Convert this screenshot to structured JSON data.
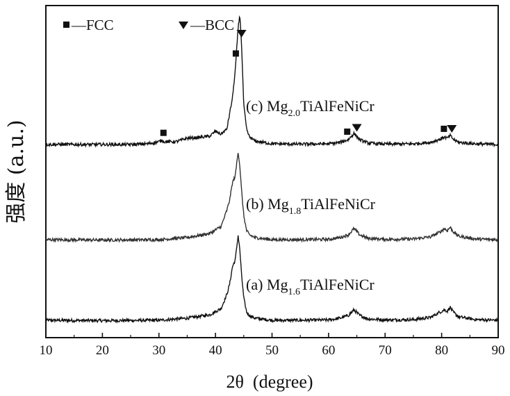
{
  "chart_data": {
    "type": "line",
    "title": "",
    "xlabel": "2θ  (degree)",
    "ylabel": "强度 (a.u.)",
    "xlim": [
      10,
      90
    ],
    "xticks": [
      10,
      20,
      30,
      40,
      50,
      60,
      70,
      80,
      90
    ],
    "grid": false,
    "legend": [
      {
        "marker": "square",
        "label": "—FCC"
      },
      {
        "marker": "triangle-down",
        "label": "—BCC"
      }
    ],
    "series": [
      {
        "id": "a",
        "label_prefix": "(a) Mg",
        "label_sub": "1.6",
        "label_suffix": "TiAlFeNiCr",
        "color": "#111111",
        "offset": 0,
        "x": [
          10,
          20,
          30,
          35,
          39,
          41,
          42,
          42.5,
          43,
          43.5,
          44,
          44.3,
          44.6,
          45,
          45.5,
          46,
          47,
          50,
          55,
          60,
          62,
          63.5,
          64.5,
          65.5,
          67,
          70,
          75,
          78,
          79.5,
          80.5,
          81,
          81.5,
          82,
          83,
          86,
          90
        ],
        "y": [
          0.3,
          0.25,
          0.3,
          0.6,
          1.1,
          2.0,
          4.0,
          5.5,
          8.0,
          9.0,
          12.5,
          10.5,
          7.0,
          3.5,
          1.5,
          1.0,
          0.6,
          0.3,
          0.3,
          0.35,
          0.6,
          1.0,
          1.8,
          1.0,
          0.5,
          0.35,
          0.4,
          0.7,
          1.4,
          1.8,
          1.6,
          2.2,
          1.5,
          0.8,
          0.4,
          0.3
        ]
      },
      {
        "id": "b",
        "label_prefix": "(b) Mg",
        "label_sub": "1.8",
        "label_suffix": "TiAlFeNiCr",
        "color": "#333333",
        "offset": 12,
        "x": [
          10,
          20,
          30,
          35,
          39,
          41,
          42,
          42.5,
          43,
          43.5,
          44,
          44.3,
          44.6,
          45,
          45.5,
          46,
          47,
          50,
          55,
          60,
          62,
          63.5,
          64.5,
          65.5,
          67,
          70,
          75,
          78,
          79.5,
          80.5,
          81,
          81.5,
          82,
          83,
          86,
          90
        ],
        "y": [
          0.3,
          0.25,
          0.3,
          0.6,
          1.2,
          2.2,
          4.5,
          6.0,
          8.5,
          9.5,
          13.0,
          11.0,
          7.5,
          3.8,
          1.6,
          1.0,
          0.6,
          0.3,
          0.3,
          0.35,
          0.6,
          1.0,
          1.9,
          1.0,
          0.5,
          0.35,
          0.4,
          0.7,
          1.3,
          1.9,
          1.6,
          2.1,
          1.5,
          0.8,
          0.4,
          0.3
        ]
      },
      {
        "id": "c",
        "label_prefix": "(c) Mg",
        "label_sub": "2.0",
        "label_suffix": "TiAlFeNiCr",
        "color": "#111111",
        "offset": 24,
        "x": [
          10,
          20,
          25,
          28,
          30,
          30.5,
          31,
          33,
          35,
          37,
          39,
          40,
          41,
          42,
          43,
          43.5,
          44,
          44.3,
          44.6,
          45,
          45.5,
          46,
          47,
          50,
          55,
          60,
          62,
          63.5,
          64.5,
          65.5,
          67,
          70,
          75,
          78,
          79.5,
          80.5,
          81,
          81.5,
          82,
          83,
          86,
          90
        ],
        "y": [
          0.3,
          0.3,
          0.3,
          0.4,
          0.7,
          0.9,
          0.7,
          0.7,
          1.2,
          1.3,
          1.5,
          2.2,
          1.8,
          2.5,
          7.0,
          11.0,
          17.0,
          19.0,
          15.0,
          6.0,
          2.5,
          1.4,
          0.8,
          0.4,
          0.35,
          0.4,
          0.6,
          1.0,
          1.9,
          1.0,
          0.5,
          0.35,
          0.4,
          0.6,
          1.0,
          1.4,
          1.2,
          1.6,
          1.1,
          0.6,
          0.4,
          0.3
        ]
      }
    ],
    "phase_markers": [
      {
        "series": "c",
        "x": 30.8,
        "marker": "square"
      },
      {
        "series": "c",
        "x": 43.6,
        "marker": "square"
      },
      {
        "series": "c",
        "x": 44.6,
        "marker": "triangle-down"
      },
      {
        "series": "c",
        "x": 63.3,
        "marker": "square"
      },
      {
        "series": "c",
        "x": 65.0,
        "marker": "triangle-down"
      },
      {
        "series": "c",
        "x": 80.4,
        "marker": "square"
      },
      {
        "series": "c",
        "x": 81.8,
        "marker": "triangle-down"
      }
    ]
  }
}
